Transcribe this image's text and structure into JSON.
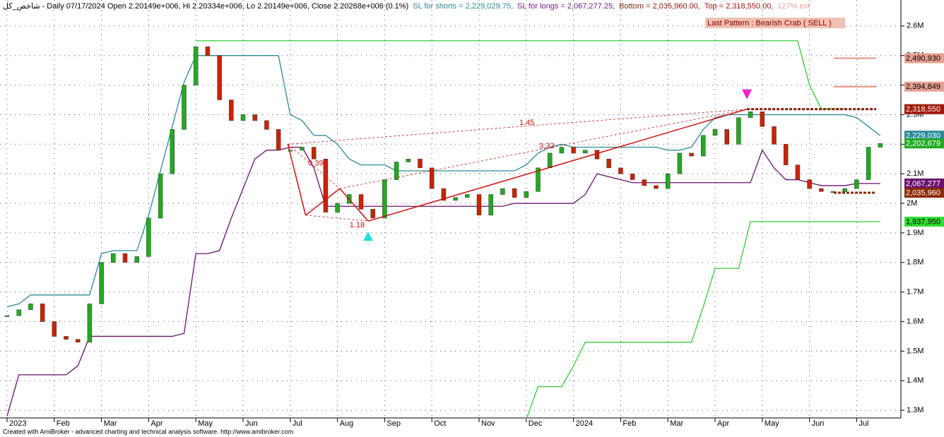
{
  "chart_data": {
    "type": "candlestick",
    "header": [
      {
        "text": "شاخص_کل - Daily 07/17/2024 Open 2.20149e+006, Hi 2.20334e+006, Lo 2.20149e+006, Close 2.20268e+006 (0.1%)",
        "color": "#000000"
      },
      {
        "text": "SL for shorts = 2,229,029.75,",
        "color": "#2a8a9a"
      },
      {
        "text": "SL for longs = 2,067,277.25,",
        "color": "#7a1a8a"
      },
      {
        "text": "Bottom = 2,035,960.00,",
        "color": "#8b1a00"
      },
      {
        "text": "Top = 2,318,550.00,",
        "color": "#b01010"
      },
      {
        "text": "127% ext",
        "color": "#e8a0a0"
      }
    ],
    "footer": "Created with AmiBroker - advanced charting and technical analysis software. http://www.amibroker.com",
    "categories": [
      "2023",
      null,
      null,
      null,
      "Feb",
      null,
      null,
      null,
      "Mar",
      null,
      null,
      null,
      "Apr",
      null,
      null,
      null,
      "May",
      null,
      null,
      null,
      "Jun",
      null,
      null,
      null,
      "Jul",
      null,
      null,
      null,
      "Aug",
      null,
      null,
      null,
      "Sep",
      null,
      null,
      null,
      "Oct",
      null,
      null,
      null,
      "Nov",
      null,
      null,
      null,
      "Dec",
      null,
      null,
      null,
      "2024",
      null,
      null,
      null,
      "Feb",
      null,
      null,
      null,
      "Mar",
      null,
      null,
      null,
      "Apr",
      null,
      null,
      null,
      "May",
      null,
      null,
      null,
      "Jun",
      null,
      null,
      null,
      "Jul",
      null,
      null
    ],
    "close": [
      1620000,
      1640000,
      1660000,
      1600000,
      1550000,
      1540000,
      1530000,
      1660000,
      1800000,
      1830000,
      1800000,
      1820000,
      1950000,
      2100000,
      2250000,
      2400000,
      2530000,
      2500000,
      2350000,
      2280000,
      2300000,
      2280000,
      2250000,
      2180000,
      2180000,
      2190000,
      2150000,
      1970000,
      2000000,
      2030000,
      1980000,
      1950000,
      2080000,
      2140000,
      2150000,
      2120000,
      2050000,
      2010000,
      2020000,
      2030000,
      1960000,
      2030000,
      2050000,
      2020000,
      2040000,
      2120000,
      2170000,
      2190000,
      2170000,
      2180000,
      2150000,
      2120000,
      2100000,
      2080000,
      2060000,
      2050000,
      2100000,
      2170000,
      2160000,
      2230000,
      2250000,
      2200000,
      2290000,
      2310000,
      2260000,
      2200000,
      2130000,
      2080000,
      2050000,
      2040000,
      2040000,
      2050000,
      2080000,
      2190000,
      2202680
    ],
    "up_color": "#22aa22",
    "down_color": "#cc2200",
    "series": [
      {
        "name": "SL for shorts",
        "color": "#2a8a9a",
        "values": [
          1650000,
          1660000,
          1690000,
          1690000,
          1690000,
          1690000,
          1690000,
          1690000,
          1830000,
          1840000,
          1840000,
          1840000,
          1960000,
          2110000,
          2260000,
          2410000,
          2500000,
          2500000,
          2500000,
          2500000,
          2500000,
          2500000,
          2500000,
          2500000,
          2300000,
          2280000,
          2230000,
          2230000,
          2200000,
          2150000,
          2130000,
          2130000,
          2130000,
          2110000,
          2110000,
          2110000,
          2110000,
          2110000,
          2110000,
          2110000,
          2110000,
          2110000,
          2110000,
          2110000,
          2130000,
          2170000,
          2190000,
          2200000,
          2190000,
          2190000,
          2190000,
          2190000,
          2190000,
          2190000,
          2190000,
          2190000,
          2180000,
          2180000,
          2190000,
          2250000,
          2290000,
          2300000,
          2300000,
          2300000,
          2300000,
          2300000,
          2300000,
          2300000,
          2300000,
          2300000,
          2300000,
          2300000,
          2290000,
          2260000,
          2229030
        ]
      },
      {
        "name": "SL for longs",
        "color": "#6a1070",
        "values": [
          1280000,
          1420000,
          1420000,
          1420000,
          1420000,
          1420000,
          1450000,
          1550000,
          1550000,
          1550000,
          1550000,
          1550000,
          1550000,
          1550000,
          1550000,
          1560000,
          1830000,
          1830000,
          1840000,
          1950000,
          2050000,
          2150000,
          2180000,
          2180000,
          2190000,
          2190000,
          2120000,
          1990000,
          1990000,
          1990000,
          1990000,
          1990000,
          1990000,
          1990000,
          1990000,
          1990000,
          1990000,
          1990000,
          1990000,
          1990000,
          1990000,
          1990000,
          1990000,
          2000000,
          2000000,
          2000000,
          2000000,
          2000000,
          2000000,
          2030000,
          2100000,
          2090000,
          2080000,
          2070000,
          2070000,
          2070000,
          2070000,
          2070000,
          2070000,
          2070000,
          2070000,
          2070000,
          2070000,
          2070000,
          2180000,
          2120000,
          2080000,
          2080000,
          2070000,
          2060000,
          2060000,
          2060000,
          2067277,
          2067277,
          2067277
        ]
      },
      {
        "color": "#33cc33",
        "values": [
          null,
          null,
          null,
          null,
          null,
          null,
          null,
          null,
          null,
          null,
          null,
          null,
          null,
          null,
          null,
          null,
          2550000,
          2550000,
          2550000,
          2550000,
          2550000,
          2550000,
          2550000,
          2550000,
          2550000,
          2550000,
          2550000,
          2550000,
          2550000,
          2550000,
          2550000,
          2550000,
          2550000,
          2550000,
          2550000,
          2550000,
          2550000,
          2550000,
          2550000,
          2550000,
          2550000,
          2550000,
          2550000,
          2550000,
          2550000,
          2550000,
          2550000,
          2550000,
          2550000,
          2550000,
          2550000,
          2550000,
          2550000,
          2550000,
          2550000,
          2550000,
          2550000,
          2550000,
          2550000,
          2550000,
          2550000,
          2550000,
          2550000,
          2550000,
          2550000,
          2550000,
          2550000,
          2550000,
          2400000,
          2320000,
          2320000,
          2320000,
          null,
          null,
          null
        ]
      },
      {
        "color": "#33cc33",
        "values": [
          null,
          null,
          null,
          null,
          null,
          null,
          null,
          null,
          null,
          null,
          null,
          null,
          null,
          null,
          null,
          null,
          null,
          null,
          null,
          null,
          null,
          null,
          null,
          null,
          null,
          null,
          null,
          null,
          null,
          null,
          null,
          null,
          null,
          null,
          null,
          null,
          null,
          null,
          null,
          null,
          null,
          null,
          null,
          null,
          1270000,
          1380000,
          1380000,
          1380000,
          1450000,
          1530000,
          1530000,
          1530000,
          1530000,
          1530000,
          1530000,
          1530000,
          1530000,
          1530000,
          1530000,
          1650000,
          1780000,
          1780000,
          1780000,
          1937950,
          1937950,
          1937950,
          1937950,
          1937950,
          1937950,
          1937950,
          1937950,
          1937950,
          1937950,
          1937950,
          1937950
        ]
      }
    ],
    "pattern": {
      "label": "Last Pattern : Bearish Crab ( SELL )",
      "color": "#cc1111",
      "points": [
        2200000,
        1960000,
        2050000,
        1940000,
        2318550
      ],
      "ratios": [
        0.39,
        1.18,
        1.45,
        3.32
      ]
    },
    "price_labels": [
      {
        "value": 2490930,
        "label": "2,490,930",
        "color": "#e8a090"
      },
      {
        "value": 2394849,
        "label": "2,394,849",
        "color": "#e8a090"
      },
      {
        "value": 2318550,
        "label": "2,318,550",
        "color": "#22aa22"
      },
      {
        "value": 2318550,
        "label": "2,318,550",
        "color": "#a01808"
      },
      {
        "value": 2229030,
        "label": "2,229,030",
        "color": "#2a8a9a"
      },
      {
        "value": 2202679,
        "label": "2,202,679",
        "color": "#22aa22"
      },
      {
        "value": 2067277,
        "label": "2,067,277",
        "color": "#6a1070"
      },
      {
        "value": 2035960,
        "label": "2,035,960",
        "color": "#8b2a00"
      },
      {
        "value": 1937950,
        "label": "1,937,950",
        "color": "#33dd33"
      }
    ],
    "ylim": [
      1274000,
      2688000
    ],
    "yticks": [
      {
        "value": 1300000,
        "label": "1.3M"
      },
      {
        "value": 1400000,
        "label": "1.4M"
      },
      {
        "value": 1500000,
        "label": "1.5M"
      },
      {
        "value": 1600000,
        "label": "1.6M"
      },
      {
        "value": 1700000,
        "label": "1.7M"
      },
      {
        "value": 1800000,
        "label": "1.8M"
      },
      {
        "value": 1900000,
        "label": "1.9M"
      },
      {
        "value": 2000000,
        "label": "2M"
      },
      {
        "value": 2100000,
        "label": "2.1M"
      },
      {
        "value": 2200000,
        "label": "2.2M"
      },
      {
        "value": 2300000,
        "label": "2.3M"
      },
      {
        "value": 2400000,
        "label": "2.4M"
      },
      {
        "value": 2500000,
        "label": "2.5M"
      },
      {
        "value": 2600000,
        "label": "2.6M"
      }
    ],
    "grid": true
  }
}
